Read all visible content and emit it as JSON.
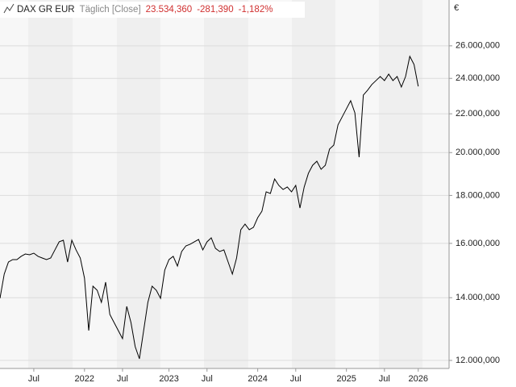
{
  "header": {
    "name": "DAX GR EUR",
    "interval": "Täglich [Close]",
    "last": "23.534,360",
    "change": "-281,390",
    "change_pct": "-1,182%"
  },
  "chart_data": {
    "type": "line",
    "log_scale": true,
    "grid": true,
    "unit": "€",
    "categories": [
      null,
      null,
      null,
      null,
      null,
      null,
      null,
      null,
      "Jul",
      null,
      null,
      null,
      null,
      null,
      null,
      null,
      null,
      null,
      null,
      null,
      "2022",
      null,
      null,
      null,
      null,
      null,
      null,
      null,
      null,
      "Jul",
      null,
      null,
      null,
      null,
      null,
      null,
      null,
      null,
      null,
      null,
      "2023",
      null,
      null,
      null,
      null,
      null,
      null,
      null,
      null,
      "Jul",
      null,
      null,
      null,
      null,
      null,
      null,
      null,
      null,
      null,
      null,
      null,
      "2024",
      null,
      null,
      null,
      null,
      null,
      null,
      null,
      null,
      "Jul",
      null,
      null,
      null,
      null,
      null,
      null,
      null,
      null,
      null,
      null,
      null,
      "2025",
      null,
      null,
      null,
      null,
      null,
      null,
      null,
      null,
      "Jul",
      null,
      null,
      null,
      null,
      null,
      null,
      null,
      "2026"
    ],
    "series": [
      {
        "name": "DAX GR EUR",
        "color": "#000000",
        "values": [
          13980,
          14836,
          15283,
          15374,
          15374,
          15497,
          15588,
          15559,
          15619,
          15497,
          15435,
          15374,
          15435,
          15745,
          16060,
          16123,
          15283,
          16123,
          15745,
          15435,
          14689,
          12913,
          14401,
          14258,
          13841,
          14544,
          13435,
          13172,
          12913,
          12660,
          13704,
          13172,
          12412,
          12048,
          12913,
          13841,
          14401,
          14258,
          13979,
          14983,
          15374,
          15497,
          15132,
          15682,
          15901,
          15964,
          16060,
          16154,
          15745,
          16060,
          16219,
          15806,
          15682,
          15745,
          15283,
          14836,
          15435,
          16544,
          16775,
          16544,
          16643,
          17042,
          17316,
          18160,
          18088,
          18744,
          18449,
          18266,
          18377,
          18160,
          18449,
          17453,
          18377,
          19007,
          19386,
          19579,
          19195,
          19386,
          20171,
          20371,
          21407,
          21835,
          22272,
          22720,
          22051,
          19774,
          23035,
          23311,
          23636,
          23872,
          24112,
          23872,
          24254,
          23872,
          24112,
          23498,
          24112,
          25336,
          24839,
          23534.36
        ]
      }
    ],
    "ylim": [
      11765,
      29100
    ],
    "yticks": [
      {
        "value": 12000,
        "label": "12.000,000"
      },
      {
        "value": 14000,
        "label": "14.000,000"
      },
      {
        "value": 16000,
        "label": "16.000,000"
      },
      {
        "value": 18000,
        "label": "18.000,000"
      },
      {
        "value": 20000,
        "label": "20.000,000"
      },
      {
        "value": 22000,
        "label": "22.000,000"
      },
      {
        "value": 24000,
        "label": "24.000,000"
      },
      {
        "value": 26000,
        "label": "26.000,000"
      }
    ]
  }
}
